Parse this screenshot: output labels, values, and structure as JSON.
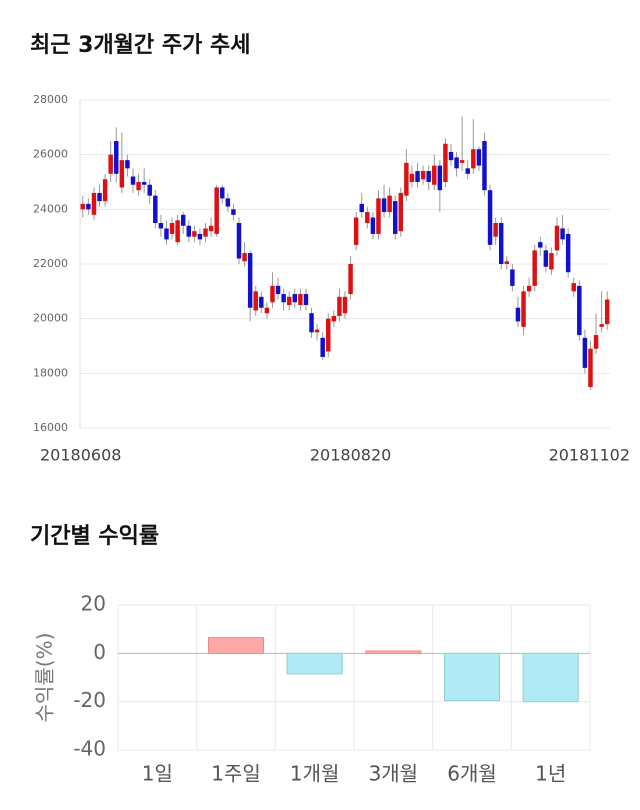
{
  "chart_data": [
    {
      "type": "candlestick",
      "title": "최근 3개월간 주가 추세",
      "categories": [
        "20180608",
        null,
        null,
        null,
        null,
        null,
        null,
        null,
        null,
        null,
        null,
        null,
        null,
        null,
        null,
        null,
        null,
        null,
        null,
        null,
        null,
        null,
        null,
        null,
        null,
        null,
        null,
        null,
        null,
        null,
        null,
        null,
        null,
        null,
        null,
        null,
        null,
        null,
        null,
        null,
        null,
        null,
        null,
        null,
        null,
        null,
        null,
        null,
        "20180820",
        null,
        null,
        null,
        null,
        null,
        null,
        null,
        null,
        null,
        null,
        null,
        null,
        null,
        null,
        null,
        null,
        null,
        null,
        null,
        null,
        null,
        null,
        null,
        null,
        null,
        null,
        null,
        null,
        null,
        null,
        null,
        null,
        null,
        null,
        null,
        null,
        null,
        null,
        null,
        null,
        null,
        null,
        null,
        null,
        null,
        "20181102"
      ],
      "open": [
        24000,
        24200,
        23800,
        24600,
        24300,
        25300,
        26500,
        24800,
        25800,
        25200,
        24700,
        25000,
        24900,
        24500,
        23500,
        23300,
        23100,
        22800,
        23800,
        23400,
        23000,
        23100,
        23000,
        23200,
        23100,
        24800,
        24400,
        24000,
        23500,
        22100,
        22400,
        20300,
        20800,
        20200,
        20600,
        21200,
        20900,
        20500,
        20900,
        20500,
        20900,
        20200,
        19500,
        19300,
        18800,
        19900,
        20100,
        20200,
        20900,
        22700,
        24200,
        23500,
        23700,
        23100,
        24400,
        23900,
        24300,
        23200,
        24500,
        25000,
        25400,
        25100,
        25400,
        24900,
        25600,
        25000,
        26100,
        25900,
        25700,
        25500,
        25500,
        26200,
        26500,
        24700,
        23000,
        23500,
        22000,
        21800,
        20400,
        19700,
        21000,
        21200,
        22800,
        22500,
        21800,
        22500,
        23300,
        23100,
        21000,
        21200,
        19300,
        17500,
        18900,
        19700,
        19800
      ],
      "high": [
        24500,
        24400,
        24800,
        24900,
        25300,
        26500,
        27000,
        26800,
        26000,
        25500,
        25300,
        25500,
        25100,
        24700,
        23800,
        23600,
        23700,
        23800,
        23900,
        23600,
        23400,
        23300,
        23500,
        23700,
        24900,
        24900,
        24600,
        24200,
        23700,
        22800,
        22500,
        21200,
        21000,
        20600,
        21700,
        21500,
        21100,
        21000,
        21100,
        21100,
        21100,
        20400,
        19800,
        19500,
        20200,
        20300,
        21100,
        21000,
        22300,
        23900,
        24600,
        24100,
        23900,
        24700,
        24900,
        24800,
        24500,
        24800,
        26200,
        25600,
        25700,
        25600,
        25600,
        26000,
        25800,
        26600,
        26400,
        26100,
        27400,
        25800,
        27300,
        26300,
        26800,
        24900,
        23700,
        23700,
        22300,
        22000,
        20800,
        21200,
        21500,
        22700,
        23000,
        22700,
        22600,
        23700,
        23800,
        23300,
        21500,
        21400,
        19600,
        19200,
        20200,
        21000,
        21000
      ],
      "low": [
        23700,
        23800,
        23600,
        24100,
        24100,
        25000,
        25000,
        24600,
        25200,
        24600,
        24500,
        24600,
        24200,
        23300,
        23000,
        22700,
        22900,
        22700,
        23100,
        22800,
        22800,
        22700,
        22800,
        23000,
        23000,
        24200,
        23900,
        23600,
        22000,
        21900,
        19900,
        20100,
        20200,
        20000,
        20400,
        20700,
        20300,
        20300,
        20400,
        20300,
        20300,
        19300,
        19200,
        18500,
        18600,
        19700,
        19900,
        20000,
        20700,
        22500,
        23700,
        23300,
        22900,
        22900,
        23700,
        23700,
        22900,
        23000,
        24300,
        24800,
        24800,
        24900,
        24700,
        24700,
        23900,
        24800,
        25600,
        25200,
        25400,
        25100,
        25300,
        25400,
        24500,
        22500,
        22700,
        21800,
        21800,
        21000,
        19700,
        19400,
        20800,
        21000,
        22300,
        21700,
        21600,
        22300,
        22700,
        21500,
        20800,
        19200,
        18000,
        17400,
        18700,
        19500,
        19600
      ],
      "close": [
        24200,
        24000,
        24600,
        24300,
        25100,
        26000,
        25300,
        25800,
        25500,
        24900,
        25000,
        24900,
        24500,
        23500,
        23300,
        22900,
        23500,
        23600,
        23400,
        23000,
        23200,
        22900,
        23300,
        23400,
        24800,
        24400,
        24100,
        23800,
        22200,
        22400,
        20400,
        21000,
        20400,
        20400,
        21200,
        20900,
        20600,
        20800,
        20600,
        20900,
        20500,
        19500,
        19600,
        18600,
        20000,
        20100,
        20800,
        20800,
        22000,
        23700,
        23900,
        23900,
        23100,
        24400,
        23900,
        24500,
        23100,
        24600,
        25700,
        25300,
        25000,
        25400,
        25000,
        25600,
        24700,
        26400,
        25800,
        25500,
        25800,
        25300,
        26200,
        25600,
        24700,
        22700,
        23500,
        22000,
        22100,
        21200,
        19900,
        21000,
        21200,
        22500,
        22600,
        21900,
        22400,
        23400,
        22900,
        21700,
        21300,
        19400,
        18200,
        18900,
        19400,
        19800,
        20700
      ],
      "up_color": "#dd1111",
      "down_color": "#1111cc",
      "ylim": [
        16000,
        28000
      ],
      "yticks": [
        16000,
        18000,
        20000,
        22000,
        24000,
        26000,
        28000
      ],
      "grid": true
    },
    {
      "type": "bar",
      "title": "기간별 수익률",
      "ylabel": "수익률(%)",
      "categories": [
        "1일",
        "1주일",
        "1개월",
        "3개월",
        "6개월",
        "1년"
      ],
      "values": [
        0,
        6.5,
        -8.5,
        1,
        -19.5,
        -20
      ],
      "positive_color": "#ffa8a8",
      "negative_color": "#b0eaf4",
      "ylim": [
        -40,
        20
      ],
      "yticks": [
        -40,
        -20,
        0,
        20
      ],
      "grid": true
    }
  ]
}
